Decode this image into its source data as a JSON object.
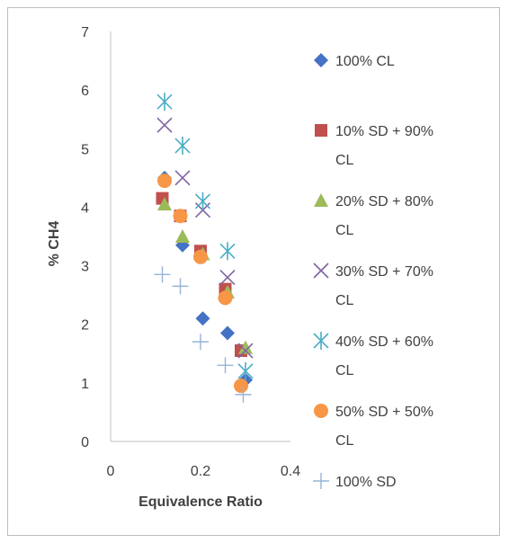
{
  "chart_data": {
    "type": "scatter",
    "title": "",
    "xlabel": "Equivalence Ratio",
    "ylabel": "% CH4",
    "xlim": [
      0,
      0.4
    ],
    "ylim": [
      0,
      7
    ],
    "xticks": [
      0,
      0.2,
      0.4
    ],
    "yticks": [
      0,
      1,
      2,
      3,
      4,
      5,
      6,
      7
    ],
    "xtick_labels": [
      "0",
      "0.2",
      "0.4"
    ],
    "ytick_labels": [
      "0",
      "1",
      "2",
      "3",
      "4",
      "5",
      "6",
      "7"
    ],
    "grid": false,
    "legend_position": "right",
    "series": [
      {
        "name": "100% CL",
        "legend_lines": [
          "100% CL"
        ],
        "marker": "diamond",
        "color": "#4472C4",
        "x": [
          0.12,
          0.16,
          0.205,
          0.26,
          0.3
        ],
        "y": [
          4.5,
          3.35,
          2.1,
          1.85,
          1.05
        ]
      },
      {
        "name": "10% SD + 90% CL",
        "legend_lines": [
          "10% SD + 90%",
          "CL"
        ],
        "marker": "square",
        "color": "#C0504D",
        "x": [
          0.115,
          0.155,
          0.2,
          0.255,
          0.29
        ],
        "y": [
          4.15,
          3.85,
          3.25,
          2.6,
          1.55
        ]
      },
      {
        "name": "20% SD + 80% CL",
        "legend_lines": [
          "20% SD + 80%",
          "CL"
        ],
        "marker": "triangle",
        "color": "#9BBB59",
        "x": [
          0.12,
          0.16,
          0.205,
          0.26,
          0.3
        ],
        "y": [
          4.05,
          3.5,
          3.2,
          2.55,
          1.6
        ]
      },
      {
        "name": "30% SD + 70% CL",
        "legend_lines": [
          "30% SD + 70%",
          "CL"
        ],
        "marker": "x",
        "color": "#8064A2",
        "x": [
          0.12,
          0.16,
          0.205,
          0.26,
          0.3
        ],
        "y": [
          5.4,
          4.5,
          3.95,
          2.8,
          1.55
        ]
      },
      {
        "name": "40% SD + 60% CL",
        "legend_lines": [
          "40% SD + 60%",
          "CL"
        ],
        "marker": "asterisk",
        "color": "#4BACC6",
        "x": [
          0.12,
          0.16,
          0.205,
          0.26,
          0.3
        ],
        "y": [
          5.8,
          5.05,
          4.1,
          3.25,
          1.2
        ]
      },
      {
        "name": "50% SD + 50% CL",
        "legend_lines": [
          "50% SD + 50%",
          "CL"
        ],
        "marker": "circle",
        "color": "#F79646",
        "x": [
          0.12,
          0.155,
          0.2,
          0.255,
          0.29
        ],
        "y": [
          4.45,
          3.85,
          3.15,
          2.45,
          0.95
        ]
      },
      {
        "name": "100% SD",
        "legend_lines": [
          "100% SD"
        ],
        "marker": "plus",
        "color": "#95B3D7",
        "x": [
          0.115,
          0.155,
          0.2,
          0.255,
          0.295
        ],
        "y": [
          2.85,
          2.65,
          1.7,
          1.3,
          0.8
        ]
      }
    ]
  }
}
